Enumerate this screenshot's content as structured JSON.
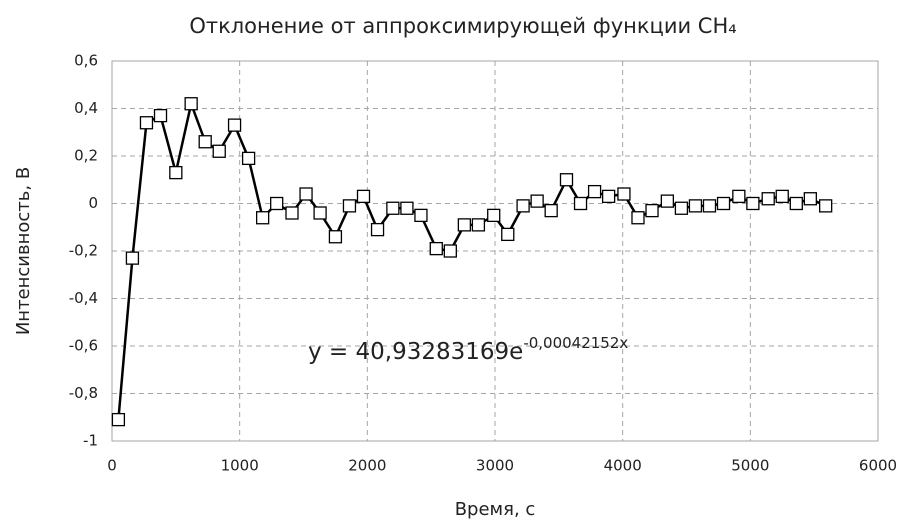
{
  "chart_data": {
    "type": "line",
    "title": "Отклонение от аппроксимирующей функции CH₄",
    "x_label": "Время, с",
    "y_label": "Интенсивность, В",
    "annotation": {
      "text": "y = 40,93283169e",
      "exponent": "-0,00042152x"
    },
    "grid": true,
    "marker": "square",
    "color": "#000000",
    "xlim": [
      0,
      6000
    ],
    "xticks": [
      0,
      1000,
      2000,
      3000,
      4000,
      5000,
      6000
    ],
    "ylim": [
      -1,
      0.6
    ],
    "yticks": [
      {
        "value": 0.6,
        "label": "0,6"
      },
      {
        "value": 0.4,
        "label": "0,4"
      },
      {
        "value": 0.2,
        "label": "0,2"
      },
      0,
      {
        "value": -0.2,
        "label": "-0,2"
      },
      {
        "value": -0.4,
        "label": "-0,4"
      },
      {
        "value": -0.6,
        "label": "-0,6"
      },
      {
        "value": -0.8,
        "label": "-0,8"
      },
      -1
    ],
    "x": [
      50,
      160,
      270,
      380,
      500,
      620,
      730,
      840,
      960,
      1070,
      1180,
      1290,
      1410,
      1520,
      1630,
      1750,
      1860,
      1970,
      2080,
      2200,
      2310,
      2420,
      2540,
      2650,
      2760,
      2870,
      2990,
      3100,
      3220,
      3330,
      3440,
      3560,
      3670,
      3780,
      3890,
      4010,
      4120,
      4230,
      4350,
      4460,
      4570,
      4680,
      4790,
      4910,
      5020,
      5140,
      5250,
      5360,
      5470,
      5590
    ],
    "values": [
      -0.91,
      -0.23,
      0.34,
      0.37,
      0.13,
      0.42,
      0.26,
      0.22,
      0.33,
      0.19,
      -0.06,
      0.0,
      -0.04,
      0.04,
      -0.04,
      -0.14,
      -0.01,
      0.03,
      -0.11,
      -0.02,
      -0.02,
      -0.05,
      -0.19,
      -0.2,
      -0.09,
      -0.09,
      -0.05,
      -0.13,
      -0.01,
      0.01,
      -0.03,
      0.1,
      0.0,
      0.05,
      0.03,
      0.04,
      -0.06,
      -0.03,
      0.01,
      -0.02,
      -0.01,
      -0.01,
      0.0,
      0.03,
      0.0,
      0.02,
      0.03,
      0.0,
      0.02,
      -0.01
    ]
  }
}
